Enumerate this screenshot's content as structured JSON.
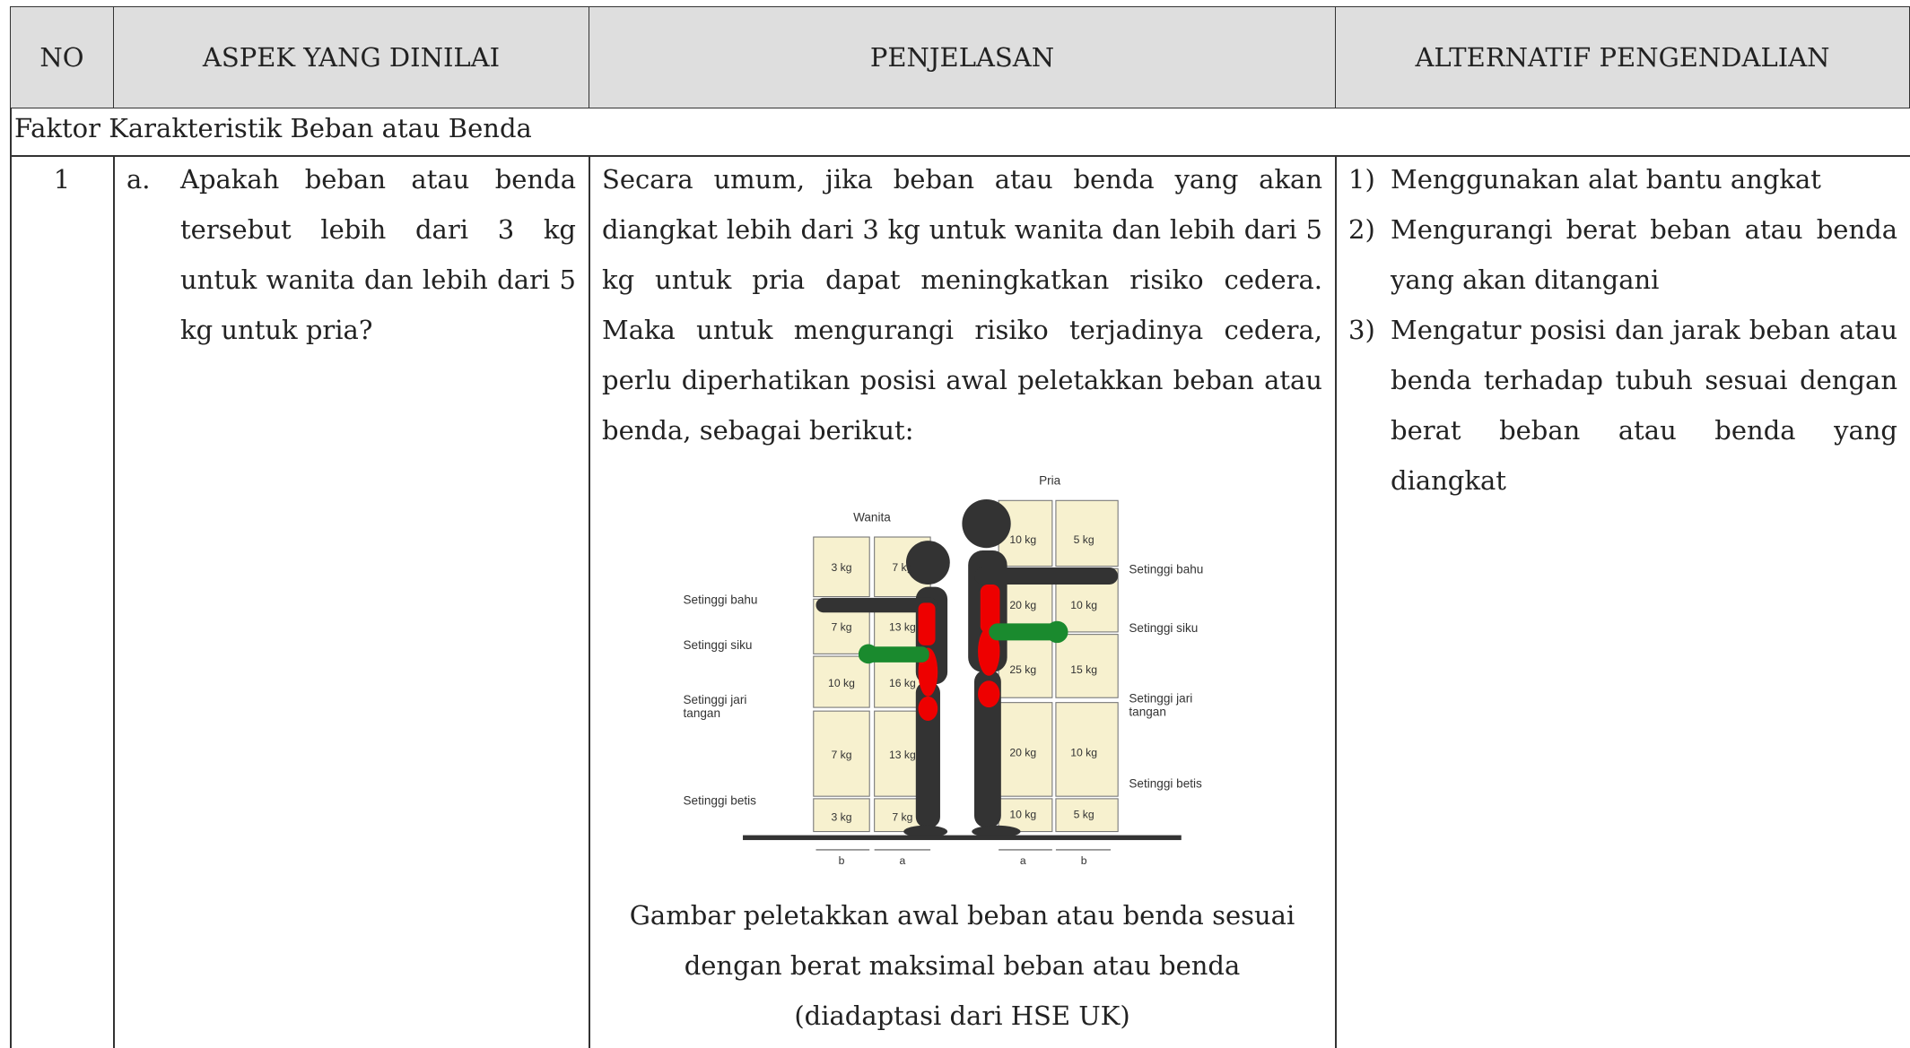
{
  "table": {
    "header": [
      "NO",
      "ASPEK YANG DINILAI",
      "PENJELASAN",
      "ALTERNATIF PENGENDALIAN"
    ],
    "section": "Faktor Karakteristik Beban atau Benda",
    "rows": [
      {
        "no": "1",
        "aspect": {
          "marker": "a.",
          "text": "Apakah beban atau benda tersebut lebih dari 3 kg untuk wanita dan lebih dari 5 kg untuk pria?"
        },
        "explanation": "Secara umum, jika beban atau benda yang akan diangkat lebih dari 3 kg untuk wanita dan lebih dari 5 kg untuk pria dapat meningkatkan risiko cedera. Maka untuk mengurangi risiko terjadinya cedera, perlu diperhatikan posisi awal peletakkan beban atau benda, sebagai berikut:",
        "figure": {
          "men_label": "Pria",
          "women_label": "Wanita",
          "left_labels": [
            [
              "Setinggi bahu"
            ],
            [
              "Setinggi siku"
            ],
            [
              "Setinggi jari",
              "tangan"
            ],
            [
              "Setinggi betis"
            ]
          ],
          "right_labels": [
            [
              "Setinggi bahu"
            ],
            [
              "Setinggi siku"
            ],
            [
              "Setinggi jari",
              "tangan"
            ],
            [
              "Setinggi betis"
            ]
          ],
          "women": {
            "b": [
              "3 kg",
              "7 kg",
              "10 kg",
              "7 kg",
              "3 kg"
            ],
            "a": [
              "7 kg",
              "13 kg",
              "16 kg",
              "13 kg",
              "7 kg"
            ]
          },
          "men": {
            "a": [
              "10 kg",
              "20 kg",
              "25 kg",
              "20 kg",
              "10 kg"
            ],
            "b": [
              "5 kg",
              "10 kg",
              "15 kg",
              "10 kg",
              "5 kg"
            ]
          },
          "distance_labels": [
            "b",
            "a",
            "a",
            "b"
          ]
        },
        "caption": [
          "Gambar peletakkan awal beban atau benda sesuai",
          "dengan berat maksimal beban atau benda",
          "(diadaptasi dari HSE UK)"
        ],
        "alternatives": [
          {
            "marker": "1)",
            "text": "Menggunakan alat bantu angkat"
          },
          {
            "marker": "2)",
            "text": "Mengurangi berat beban atau benda yang akan ditangani"
          },
          {
            "marker": "3)",
            "text": "Mengatur posisi dan jarak beban atau benda terhadap tubuh sesuai dengan berat beban atau benda yang diangkat"
          }
        ]
      }
    ]
  }
}
